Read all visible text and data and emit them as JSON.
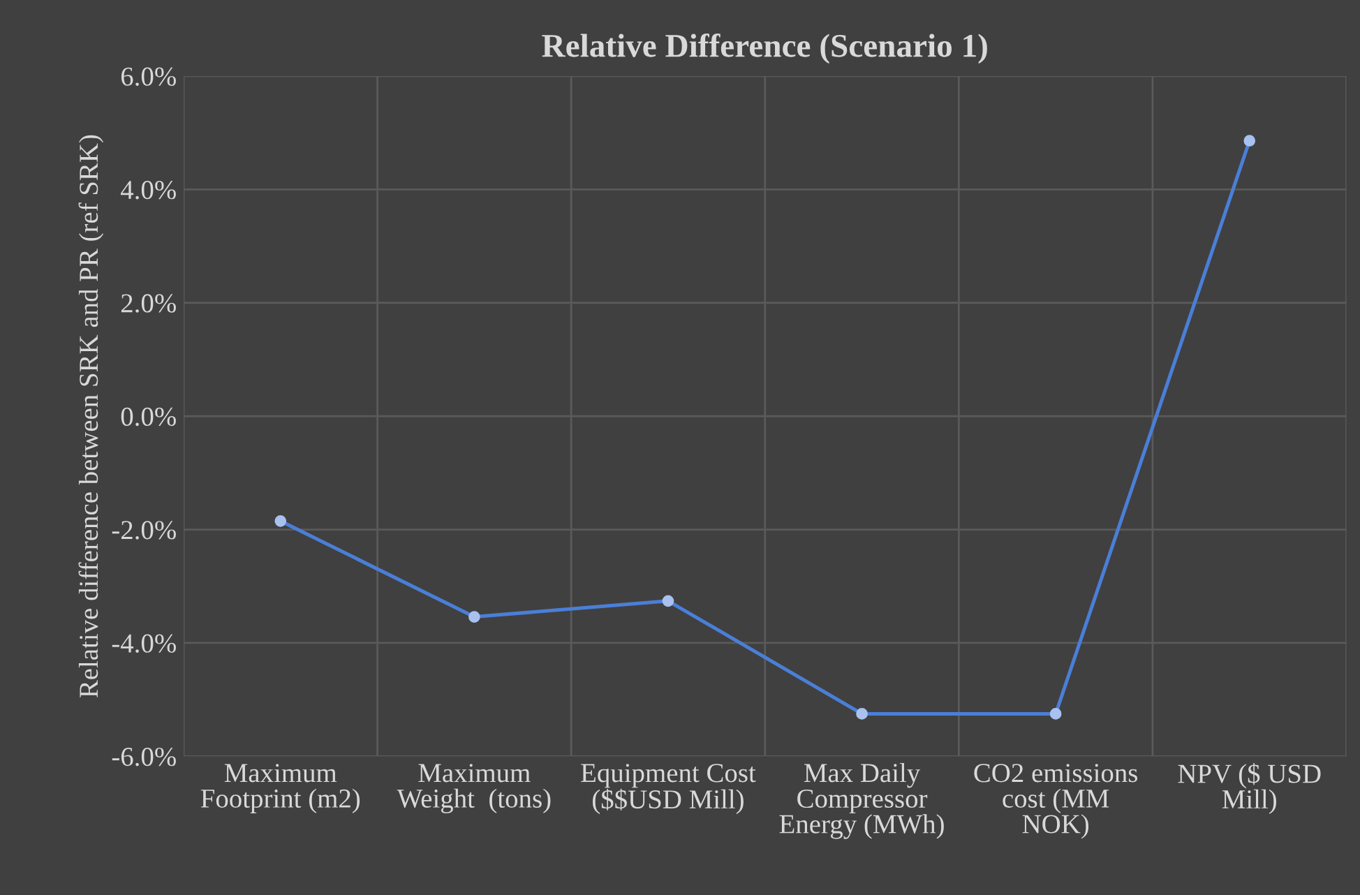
{
  "chart_data": {
    "type": "line",
    "title": "Relative Difference (Scenario 1)",
    "ylabel": "Relative difference between SRK and PR (ref SRK)",
    "categories": [
      "Maximum\nFootprint (m2)",
      "Maximum\nWeight  (tons)",
      "Equipment Cost\n($$USD Mill)",
      "Max Daily\nCompressor\nEnergy (MWh)",
      "CO2 emissions\ncost (MM\nNOK)",
      "NPV ($ USD\nMill)"
    ],
    "series": [
      {
        "color": "#4a7fd8",
        "values": [
          -1.85,
          -3.54,
          -3.26,
          -5.25,
          -5.25,
          4.86
        ]
      }
    ],
    "ylim": [
      -6,
      6
    ],
    "yticks": [
      {
        "value": -6,
        "label": "-6.0%"
      },
      {
        "value": -4,
        "label": "-4.0%"
      },
      {
        "value": -2,
        "label": "-2.0%"
      },
      {
        "value": 0,
        "label": "0.0%"
      },
      {
        "value": 2,
        "label": "2.0%"
      },
      {
        "value": 4,
        "label": "4.0%"
      },
      {
        "value": 6,
        "label": "6.0%"
      }
    ],
    "grid": true,
    "marker": "circle",
    "line_style": "solid",
    "legend": false
  }
}
